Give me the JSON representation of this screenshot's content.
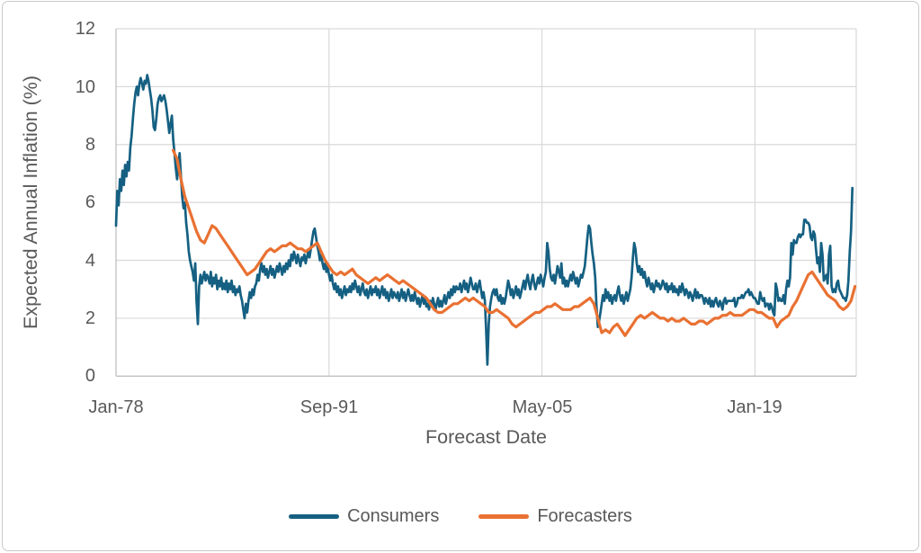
{
  "figure": {
    "background": "#ffffff",
    "frame_border_color": "#c9c9c9",
    "text_color": "#595959",
    "gridline_color": "#d9d9d9",
    "axis_line_color": "#bfbfbf"
  },
  "chart_data": {
    "type": "line",
    "title": "",
    "xlabel": "Forecast Date",
    "ylabel": "Expected Annual Inflation (%)",
    "x_unit": "months since Jan-1978",
    "xlim": [
      0,
      570
    ],
    "ylim": [
      0,
      12
    ],
    "grid": true,
    "legend_position": "bottom",
    "y_ticks": [
      0,
      2,
      4,
      6,
      8,
      10,
      12
    ],
    "y_tick_labels": [
      "0",
      "2",
      "4",
      "6",
      "8",
      "10",
      "12"
    ],
    "x_ticks": [
      0,
      164,
      328,
      492
    ],
    "x_tick_labels": [
      "Jan-78",
      "Sep-91",
      "May-05",
      "Jan-19"
    ],
    "series": [
      {
        "name": "Consumers",
        "color": "#156082",
        "line_width": 2.7,
        "start_month": 0,
        "step_months": 1,
        "values": [
          5.2,
          6.4,
          5.9,
          6.8,
          6.4,
          7.1,
          6.6,
          7.3,
          6.9,
          7.4,
          7.1,
          7.9,
          8.3,
          8.9,
          9.4,
          9.8,
          10.0,
          9.7,
          10.1,
          10.3,
          10.1,
          9.9,
          10.2,
          10.1,
          10.4,
          10.2,
          9.9,
          9.6,
          9.2,
          8.6,
          8.5,
          8.9,
          9.4,
          9.6,
          9.7,
          9.5,
          9.6,
          9.7,
          9.5,
          9.2,
          8.8,
          8.4,
          8.7,
          9.0,
          8.2,
          7.7,
          7.2,
          6.8,
          7.3,
          7.7,
          6.9,
          6.2,
          5.8,
          6.0,
          5.3,
          4.9,
          4.3,
          4.0,
          3.8,
          3.6,
          3.3,
          3.9,
          2.6,
          1.8,
          3.1,
          3.5,
          3.2,
          3.4,
          3.6,
          3.3,
          3.5,
          3.4,
          3.2,
          3.6,
          3.1,
          3.4,
          3.2,
          3.5,
          3.0,
          3.3,
          3.1,
          3.4,
          3.0,
          3.2,
          3.0,
          3.3,
          2.9,
          3.2,
          3.0,
          3.3,
          2.9,
          3.1,
          2.8,
          3.0,
          2.9,
          3.1,
          2.8,
          2.6,
          2.3,
          2.0,
          2.5,
          2.2,
          2.6,
          2.9,
          2.7,
          3.0,
          2.8,
          3.1,
          3.2,
          3.5,
          3.3,
          3.7,
          3.9,
          3.6,
          3.8,
          3.5,
          3.7,
          3.4,
          3.6,
          3.8,
          3.5,
          3.7,
          3.4,
          3.6,
          3.8,
          3.6,
          3.9,
          3.7,
          3.5,
          3.8,
          3.6,
          3.9,
          3.7,
          4.0,
          3.8,
          4.2,
          4.0,
          4.3,
          4.1,
          3.9,
          4.2,
          4.0,
          3.8,
          4.1,
          4.0,
          4.2,
          3.9,
          4.1,
          4.3,
          4.1,
          4.4,
          4.7,
          5.0,
          5.1,
          4.8,
          4.5,
          4.3,
          4.0,
          4.2,
          3.9,
          3.7,
          3.9,
          3.6,
          3.8,
          3.5,
          3.3,
          3.5,
          3.2,
          3.0,
          3.2,
          2.9,
          3.1,
          2.8,
          3.0,
          2.7,
          2.9,
          3.1,
          2.8,
          3.0,
          2.9,
          3.1,
          2.9,
          3.2,
          3.0,
          3.3,
          3.1,
          2.9,
          3.1,
          2.8,
          3.0,
          3.2,
          2.9,
          2.8,
          3.0,
          2.7,
          2.9,
          3.1,
          2.8,
          3.0,
          2.9,
          3.1,
          2.8,
          3.0,
          2.7,
          2.9,
          3.1,
          2.8,
          3.0,
          2.7,
          2.9,
          2.6,
          2.8,
          3.0,
          2.7,
          2.9,
          2.8,
          2.7,
          2.9,
          2.6,
          2.8,
          3.0,
          2.7,
          2.9,
          2.6,
          2.8,
          3.0,
          2.8,
          2.6,
          2.8,
          2.6,
          2.9,
          2.7,
          2.5,
          2.7,
          2.4,
          2.6,
          2.8,
          2.5,
          2.7,
          2.4,
          2.5,
          2.3,
          2.6,
          2.4,
          2.7,
          2.5,
          2.3,
          2.5,
          2.7,
          2.4,
          2.6,
          2.4,
          2.6,
          2.8,
          2.5,
          2.7,
          2.9,
          2.7,
          3.0,
          2.8,
          3.1,
          2.9,
          3.1,
          3.0,
          3.0,
          3.2,
          2.9,
          3.1,
          3.3,
          3.0,
          3.2,
          2.9,
          3.1,
          3.4,
          3.2,
          3.0,
          3.0,
          3.2,
          2.9,
          3.1,
          3.3,
          3.0,
          2.7,
          2.9,
          2.6,
          1.6,
          0.4,
          1.8,
          2.4,
          2.7,
          2.9,
          3.0,
          2.8,
          3.0,
          2.7,
          2.6,
          2.8,
          2.5,
          2.7,
          2.5,
          2.7,
          3.0,
          3.3,
          3.1,
          2.8,
          3.0,
          2.7,
          2.9,
          3.1,
          2.8,
          3.0,
          2.7,
          2.9,
          3.1,
          3.3,
          3.0,
          3.3,
          3.5,
          3.2,
          3.0,
          3.3,
          3.5,
          3.2,
          3.0,
          3.2,
          3.4,
          3.2,
          3.5,
          3.3,
          3.1,
          3.4,
          3.6,
          4.6,
          4.3,
          3.7,
          3.4,
          3.3,
          3.5,
          3.2,
          3.5,
          3.8,
          3.6,
          3.4,
          3.9,
          3.2,
          3.4,
          3.1,
          3.3,
          3.1,
          3.3,
          3.5,
          3.3,
          3.6,
          3.4,
          3.2,
          3.4,
          3.1,
          3.3,
          3.5,
          3.4,
          3.6,
          3.8,
          4.3,
          4.8,
          5.2,
          5.1,
          4.6,
          4.2,
          3.9,
          3.4,
          2.4,
          1.7,
          1.9,
          2.2,
          2.5,
          2.8,
          2.6,
          3.0,
          2.7,
          2.9,
          2.6,
          2.8,
          2.5,
          2.7,
          2.8,
          2.6,
          2.9,
          3.1,
          2.8,
          2.6,
          2.8,
          2.5,
          2.7,
          2.9,
          2.6,
          2.8,
          3.0,
          3.4,
          4.1,
          4.6,
          4.4,
          3.9,
          3.6,
          3.8,
          3.5,
          3.7,
          3.4,
          3.6,
          3.3,
          3.1,
          3.4,
          3.2,
          3.0,
          3.2,
          2.9,
          3.1,
          3.3,
          3.1,
          3.2,
          3.0,
          3.1,
          3.3,
          3.2,
          3.0,
          3.2,
          2.9,
          3.1,
          3.0,
          3.2,
          2.9,
          3.1,
          2.9,
          3.0,
          2.8,
          3.1,
          2.9,
          3.2,
          3.0,
          2.8,
          3.0,
          2.9,
          2.7,
          2.9,
          2.8,
          2.6,
          2.8,
          3.0,
          2.7,
          2.9,
          2.7,
          2.8,
          2.8,
          2.7,
          2.5,
          2.7,
          2.6,
          2.5,
          2.7,
          2.4,
          2.6,
          2.4,
          2.6,
          2.7,
          2.5,
          2.4,
          2.6,
          2.5,
          2.3,
          2.6,
          2.7,
          2.5,
          2.6,
          2.6,
          2.6,
          2.6,
          2.6,
          2.7,
          2.4,
          2.5,
          2.7,
          2.7,
          2.7,
          2.8,
          2.7,
          2.8,
          2.9,
          2.9,
          3.0,
          2.8,
          2.9,
          2.8,
          2.7,
          2.7,
          2.6,
          2.5,
          2.5,
          2.9,
          2.7,
          2.6,
          2.7,
          2.4,
          2.5,
          2.5,
          2.3,
          2.5,
          2.4,
          2.2,
          2.1,
          3.2,
          3.0,
          2.6,
          2.7,
          2.6,
          2.6,
          2.8,
          2.5,
          3.0,
          3.3,
          3.1,
          3.4,
          4.6,
          4.2,
          4.7,
          4.6,
          4.6,
          4.8,
          4.9,
          4.8,
          4.9,
          4.9,
          5.4,
          5.4,
          5.3,
          5.3,
          5.2,
          4.8,
          4.7,
          5.0,
          4.9,
          4.4,
          3.9,
          4.1,
          3.6,
          4.6,
          4.2,
          3.3,
          3.4,
          3.5,
          3.2,
          4.2,
          4.5,
          3.1,
          2.9,
          3.0,
          2.9,
          3.2,
          3.3,
          3.0,
          2.9,
          2.8,
          2.7,
          2.7,
          2.6,
          2.8,
          3.3,
          4.3,
          5.0,
          6.5
        ]
      },
      {
        "name": "Forecasters",
        "color": "#E97132",
        "line_width": 3.2,
        "start_month": 44,
        "step_months": 3,
        "values": [
          7.8,
          7.5,
          6.8,
          6.2,
          5.8,
          5.4,
          5.0,
          4.7,
          4.6,
          4.9,
          5.2,
          5.1,
          4.9,
          4.7,
          4.5,
          4.3,
          4.1,
          3.9,
          3.7,
          3.5,
          3.6,
          3.7,
          3.9,
          4.1,
          4.3,
          4.4,
          4.3,
          4.4,
          4.5,
          4.5,
          4.6,
          4.5,
          4.4,
          4.4,
          4.3,
          4.4,
          4.5,
          4.6,
          4.3,
          4.0,
          3.8,
          3.6,
          3.5,
          3.6,
          3.5,
          3.6,
          3.7,
          3.5,
          3.4,
          3.3,
          3.2,
          3.3,
          3.4,
          3.3,
          3.4,
          3.5,
          3.4,
          3.3,
          3.2,
          3.3,
          3.2,
          3.1,
          3.0,
          2.9,
          2.8,
          2.7,
          2.5,
          2.3,
          2.2,
          2.2,
          2.3,
          2.4,
          2.5,
          2.5,
          2.6,
          2.7,
          2.6,
          2.7,
          2.6,
          2.5,
          2.4,
          2.2,
          2.2,
          2.3,
          2.2,
          2.1,
          2.0,
          1.8,
          1.7,
          1.8,
          1.9,
          2.0,
          2.1,
          2.2,
          2.2,
          2.3,
          2.4,
          2.4,
          2.5,
          2.4,
          2.3,
          2.3,
          2.3,
          2.4,
          2.4,
          2.5,
          2.6,
          2.7,
          2.5,
          2.0,
          1.5,
          1.6,
          1.5,
          1.7,
          1.8,
          1.6,
          1.4,
          1.6,
          1.8,
          2.0,
          2.1,
          2.0,
          2.1,
          2.2,
          2.1,
          2.0,
          2.0,
          1.9,
          2.0,
          1.9,
          1.9,
          2.0,
          1.9,
          1.8,
          1.8,
          1.9,
          1.9,
          1.8,
          1.9,
          2.0,
          2.0,
          2.1,
          2.1,
          2.2,
          2.1,
          2.1,
          2.1,
          2.2,
          2.3,
          2.3,
          2.2,
          2.2,
          2.1,
          2.0,
          2.0,
          1.7,
          1.9,
          2.0,
          2.1,
          2.4,
          2.6,
          2.9,
          3.2,
          3.5,
          3.6,
          3.4,
          3.2,
          3.0,
          2.8,
          2.7,
          2.6,
          2.4,
          2.3,
          2.4,
          2.6,
          3.1
        ]
      }
    ]
  }
}
